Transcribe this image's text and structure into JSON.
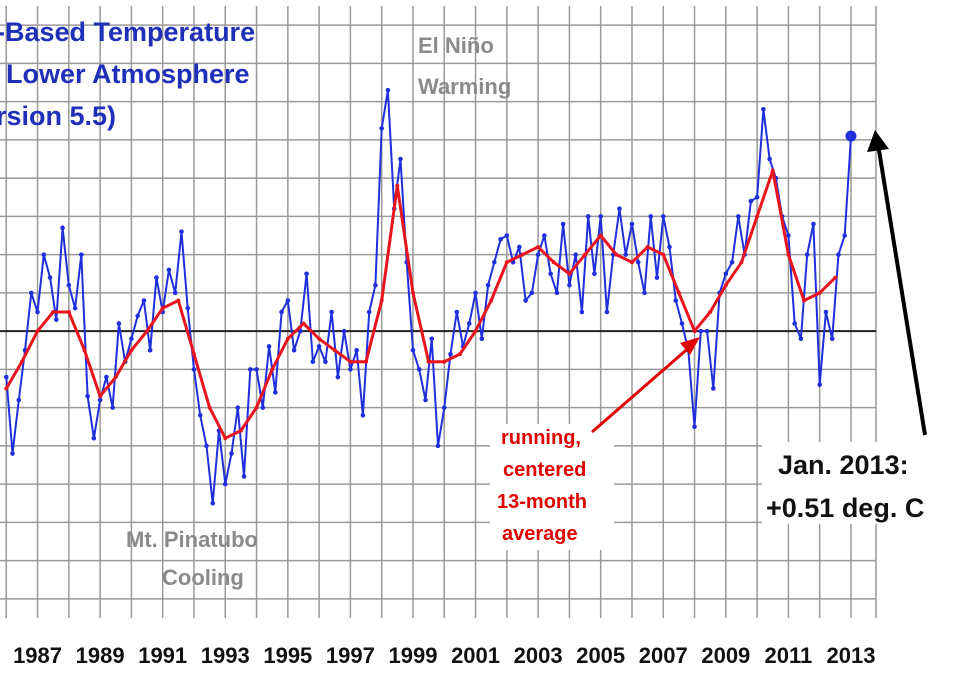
{
  "chart_data": {
    "type": "line",
    "title_lines": [
      "-Based Temperature",
      "Lower Atmosphere",
      "rsion 5.5)"
    ],
    "x_tick_labels": [
      "1987",
      "1989",
      "1991",
      "1993",
      "1995",
      "1997",
      "1999",
      "2001",
      "2003",
      "2005",
      "2007",
      "2009",
      "2011",
      "2013"
    ],
    "xlim": [
      1985.8,
      2013.8
    ],
    "ylim": [
      -0.75,
      0.85
    ],
    "grid": true,
    "zero_line": 0,
    "series": [
      {
        "kind": "monthly",
        "color": "#1f2fdc",
        "x": [
          1986.0,
          1986.2,
          1986.4,
          1986.6,
          1986.8,
          1987.0,
          1987.2,
          1987.4,
          1987.6,
          1987.8,
          1988.0,
          1988.2,
          1988.4,
          1988.6,
          1988.8,
          1989.0,
          1989.2,
          1989.4,
          1989.6,
          1989.8,
          1990.0,
          1990.2,
          1990.4,
          1990.6,
          1990.8,
          1991.0,
          1991.2,
          1991.4,
          1991.6,
          1991.8,
          1992.0,
          1992.2,
          1992.4,
          1992.6,
          1992.8,
          1993.0,
          1993.2,
          1993.4,
          1993.6,
          1993.8,
          1994.0,
          1994.2,
          1994.4,
          1994.6,
          1994.8,
          1995.0,
          1995.2,
          1995.4,
          1995.6,
          1995.8,
          1996.0,
          1996.2,
          1996.4,
          1996.6,
          1996.8,
          1997.0,
          1997.2,
          1997.4,
          1997.6,
          1997.8,
          1998.0,
          1998.2,
          1998.4,
          1998.6,
          1998.8,
          1999.0,
          1999.2,
          1999.4,
          1999.6,
          1999.8,
          2000.0,
          2000.2,
          2000.4,
          2000.6,
          2000.8,
          2001.0,
          2001.2,
          2001.4,
          2001.6,
          2001.8,
          2002.0,
          2002.2,
          2002.4,
          2002.6,
          2002.8,
          2003.0,
          2003.2,
          2003.4,
          2003.6,
          2003.8,
          2004.0,
          2004.2,
          2004.4,
          2004.6,
          2004.8,
          2005.0,
          2005.2,
          2005.4,
          2005.6,
          2005.8,
          2006.0,
          2006.2,
          2006.4,
          2006.6,
          2006.8,
          2007.0,
          2007.2,
          2007.4,
          2007.6,
          2007.8,
          2008.0,
          2008.2,
          2008.4,
          2008.6,
          2008.8,
          2009.0,
          2009.2,
          2009.4,
          2009.6,
          2009.8,
          2010.0,
          2010.2,
          2010.4,
          2010.6,
          2010.8,
          2011.0,
          2011.2,
          2011.4,
          2011.6,
          2011.8,
          2012.0,
          2012.2,
          2012.4,
          2012.6,
          2012.8,
          2013.0
        ],
        "y": [
          -0.12,
          -0.32,
          -0.18,
          -0.05,
          0.1,
          0.05,
          0.2,
          0.14,
          0.03,
          0.27,
          0.12,
          0.06,
          0.2,
          -0.17,
          -0.28,
          -0.18,
          -0.12,
          -0.2,
          0.02,
          -0.08,
          -0.02,
          0.04,
          0.08,
          -0.05,
          0.14,
          0.05,
          0.16,
          0.1,
          0.26,
          0.06,
          -0.1,
          -0.22,
          -0.3,
          -0.45,
          -0.26,
          -0.4,
          -0.32,
          -0.2,
          -0.38,
          -0.1,
          -0.1,
          -0.2,
          -0.04,
          -0.16,
          0.05,
          0.08,
          -0.05,
          0.0,
          0.15,
          -0.08,
          -0.04,
          -0.08,
          0.05,
          -0.12,
          0.0,
          -0.1,
          -0.05,
          -0.22,
          0.05,
          0.12,
          0.53,
          0.63,
          0.32,
          0.45,
          0.18,
          -0.05,
          -0.1,
          -0.18,
          -0.02,
          -0.3,
          -0.2,
          -0.06,
          0.05,
          -0.04,
          0.02,
          0.1,
          -0.02,
          0.12,
          0.18,
          0.24,
          0.25,
          0.18,
          0.22,
          0.08,
          0.1,
          0.2,
          0.25,
          0.15,
          0.1,
          0.28,
          0.12,
          0.2,
          0.05,
          0.3,
          0.15,
          0.3,
          0.05,
          0.2,
          0.32,
          0.2,
          0.28,
          0.18,
          0.1,
          0.3,
          0.14,
          0.3,
          0.22,
          0.08,
          0.02,
          -0.05,
          -0.25,
          0.0,
          0.0,
          -0.15,
          0.1,
          0.15,
          0.18,
          0.3,
          0.2,
          0.34,
          0.35,
          0.58,
          0.45,
          0.4,
          0.3,
          0.25,
          0.02,
          -0.02,
          0.2,
          0.28,
          -0.14,
          0.05,
          -0.02,
          0.2,
          0.25,
          0.51
        ]
      },
      {
        "kind": "running 13-month average",
        "color": "#e8141e",
        "x": [
          1986.0,
          1986.5,
          1987.0,
          1987.5,
          1988.0,
          1988.5,
          1989.0,
          1989.5,
          1990.0,
          1990.5,
          1991.0,
          1991.5,
          1992.0,
          1992.5,
          1993.0,
          1993.5,
          1994.0,
          1994.5,
          1995.0,
          1995.5,
          1996.0,
          1996.5,
          1997.0,
          1997.5,
          1998.0,
          1998.5,
          1999.0,
          1999.5,
          2000.0,
          2000.5,
          2001.0,
          2001.5,
          2002.0,
          2002.5,
          2003.0,
          2003.5,
          2004.0,
          2004.5,
          2005.0,
          2005.5,
          2006.0,
          2006.5,
          2007.0,
          2007.5,
          2008.0,
          2008.5,
          2009.0,
          2009.5,
          2010.0,
          2010.5,
          2011.0,
          2011.5,
          2012.0,
          2012.5
        ],
        "y": [
          -0.15,
          -0.08,
          0.0,
          0.05,
          0.05,
          -0.05,
          -0.17,
          -0.12,
          -0.05,
          0.0,
          0.06,
          0.08,
          -0.06,
          -0.2,
          -0.28,
          -0.26,
          -0.2,
          -0.1,
          -0.02,
          0.02,
          -0.02,
          -0.05,
          -0.08,
          -0.08,
          0.08,
          0.38,
          0.1,
          -0.08,
          -0.08,
          -0.06,
          0.0,
          0.08,
          0.18,
          0.2,
          0.22,
          0.18,
          0.15,
          0.2,
          0.25,
          0.2,
          0.18,
          0.22,
          0.2,
          0.1,
          0.0,
          0.05,
          0.12,
          0.18,
          0.3,
          0.42,
          0.2,
          0.08,
          0.1,
          0.14
        ]
      }
    ],
    "highlight_point": {
      "x": 2013.0,
      "y": 0.51
    }
  },
  "annotations": {
    "el_nino": [
      "El Niño",
      "Warming"
    ],
    "pinatubo": [
      "Mt. Pinatubo",
      "Cooling"
    ],
    "running": [
      "running,",
      "centered",
      "13-month",
      "average"
    ],
    "jan2013": [
      "Jan. 2013:",
      "+0.51 deg. C"
    ]
  },
  "colors": {
    "title": "#1f2fb8",
    "monthly": "#1f2fdc",
    "average": "#e8141e",
    "grid": "#9a9a9a",
    "zero": "#222222"
  }
}
